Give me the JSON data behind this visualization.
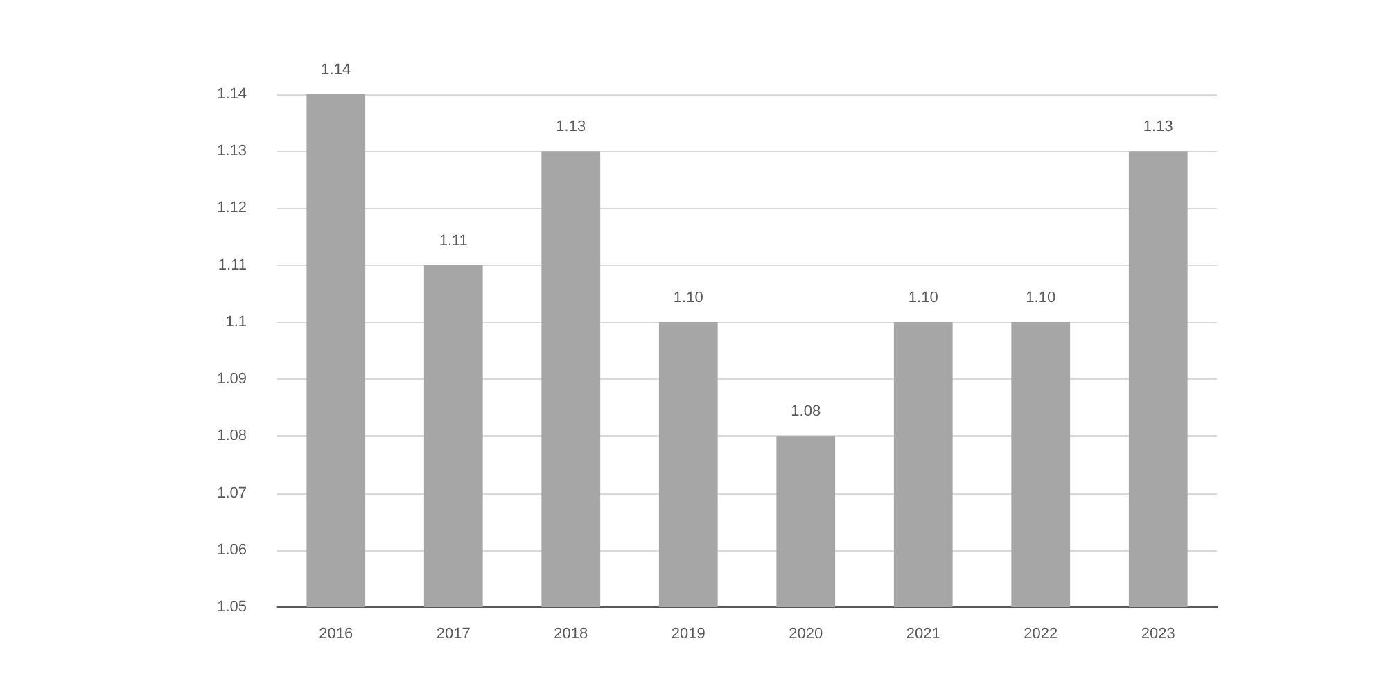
{
  "chart_data": {
    "type": "bar",
    "categories": [
      "2016",
      "2017",
      "2018",
      "2019",
      "2020",
      "2021",
      "2022",
      "2023"
    ],
    "values": [
      1.14,
      1.11,
      1.13,
      1.1,
      1.08,
      1.1,
      1.1,
      1.13
    ],
    "value_labels": [
      "1.14",
      "1.11",
      "1.13",
      "1.10",
      "1.08",
      "1.10",
      "1.10",
      "1.13"
    ],
    "color": "#a6a6a6",
    "ylim": [
      1.05,
      1.14
    ],
    "yticks": [
      1.05,
      1.06,
      1.07,
      1.08,
      1.09,
      1.1,
      1.11,
      1.12,
      1.13,
      1.14
    ],
    "grid": "y"
  }
}
